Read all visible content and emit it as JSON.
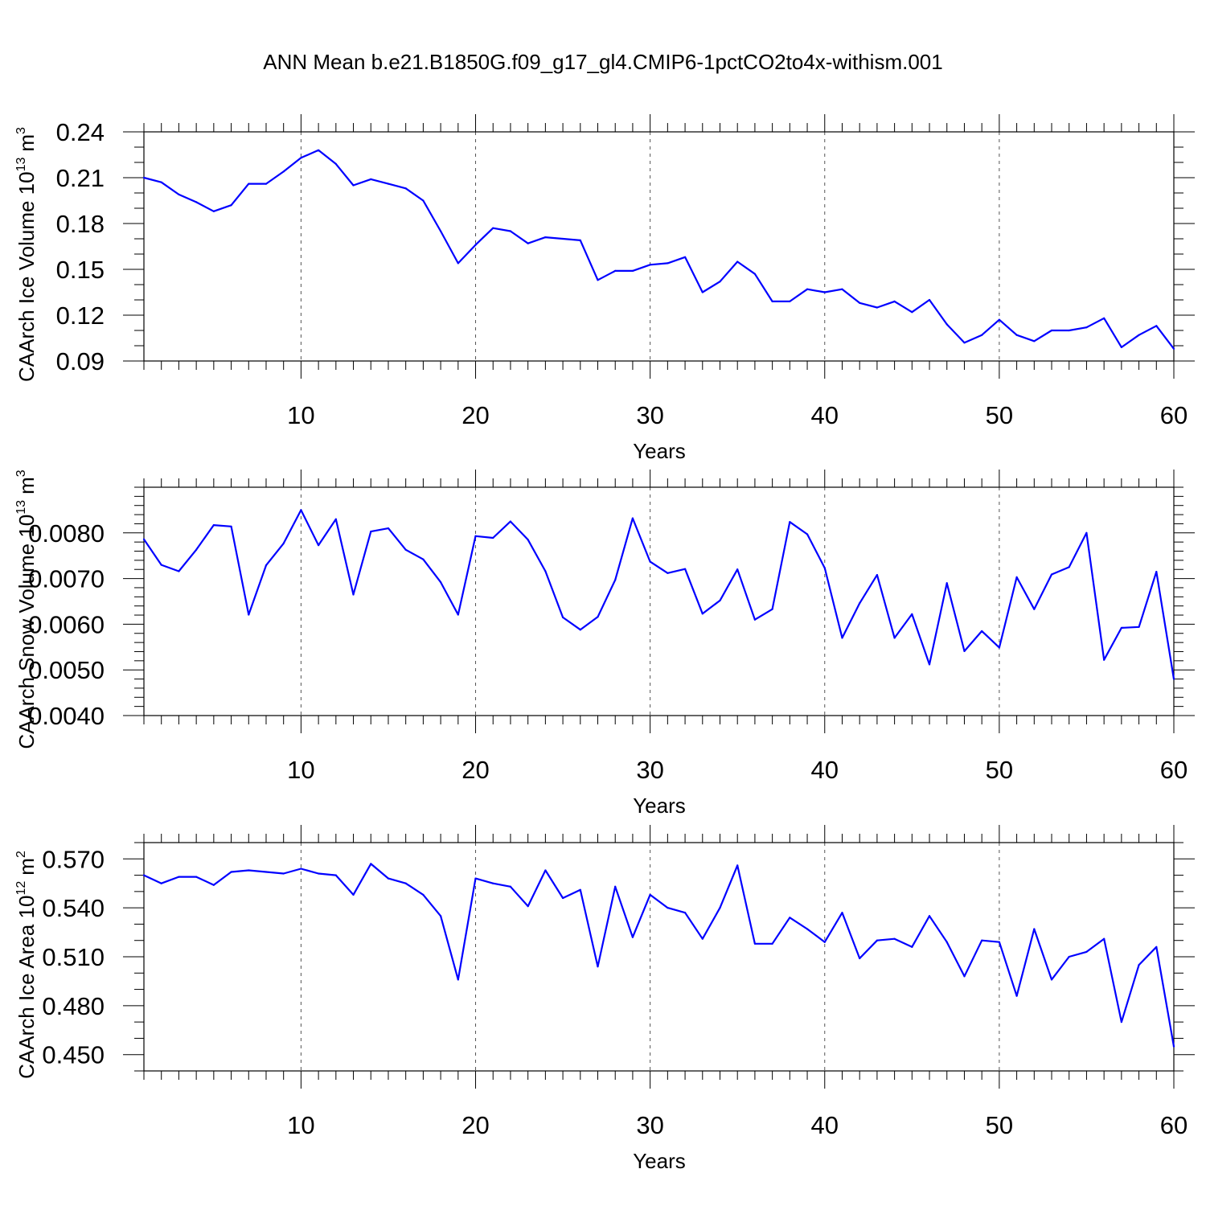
{
  "page": {
    "title": "ANN Mean b.e21.B1850G.f09_g17_gl4.CMIP6-1pctCO2to4x-withism.001"
  },
  "style": {
    "line_color": "#0000ff",
    "axis_color": "#000000",
    "grid_color": "#555555"
  },
  "chart_data": [
    {
      "type": "line",
      "title": "",
      "xlabel": "Years",
      "ylabel": "CAArch Ice Volume 10",
      "ylabel_sup": "13",
      "ylabel_unit": "m",
      "ylabel_unit_sup": "3",
      "xlim": [
        1,
        60
      ],
      "ylim": [
        0.09,
        0.24
      ],
      "yticks": [
        0.09,
        0.12,
        0.15,
        0.18,
        0.21,
        0.24
      ],
      "ytick_labels": [
        "0.09",
        "0.12",
        "0.15",
        "0.18",
        "0.21",
        "0.24"
      ],
      "ytick_minor": 0.01,
      "xticks": [
        10,
        20,
        30,
        40,
        50,
        60
      ],
      "xtick_labels": [
        "10",
        "20",
        "30",
        "40",
        "50",
        "60"
      ],
      "grid": "vertical dashed at major x ticks",
      "x": [
        1,
        2,
        3,
        4,
        5,
        6,
        7,
        8,
        9,
        10,
        11,
        12,
        13,
        14,
        15,
        16,
        17,
        18,
        19,
        20,
        21,
        22,
        23,
        24,
        25,
        26,
        27,
        28,
        29,
        30,
        31,
        32,
        33,
        34,
        35,
        36,
        37,
        38,
        39,
        40,
        41,
        42,
        43,
        44,
        45,
        46,
        47,
        48,
        49,
        50,
        51,
        52,
        53,
        54,
        55,
        56,
        57,
        58,
        59,
        60
      ],
      "series": [
        {
          "values": [
            0.21,
            0.207,
            0.199,
            0.194,
            0.188,
            0.192,
            0.206,
            0.206,
            0.214,
            0.223,
            0.228,
            0.219,
            0.205,
            0.209,
            0.206,
            0.203,
            0.195,
            0.175,
            0.154,
            0.166,
            0.177,
            0.175,
            0.167,
            0.171,
            0.17,
            0.169,
            0.143,
            0.149,
            0.149,
            0.153,
            0.154,
            0.158,
            0.135,
            0.142,
            0.155,
            0.147,
            0.129,
            0.129,
            0.137,
            0.135,
            0.137,
            0.128,
            0.125,
            0.129,
            0.122,
            0.13,
            0.114,
            0.102,
            0.107,
            0.117,
            0.107,
            0.103,
            0.11,
            0.11,
            0.112,
            0.118,
            0.099,
            0.107,
            0.113,
            0.098
          ]
        }
      ]
    },
    {
      "type": "line",
      "title": "",
      "xlabel": "Years",
      "ylabel": "CAArch Snow Volume 10",
      "ylabel_sup": "13",
      "ylabel_unit": "m",
      "ylabel_unit_sup": "3",
      "xlim": [
        1,
        60
      ],
      "ylim": [
        0.004,
        0.009
      ],
      "yticks": [
        0.004,
        0.005,
        0.006,
        0.007,
        0.008
      ],
      "ytick_labels": [
        "0.0040",
        "0.0050",
        "0.0060",
        "0.0070",
        "0.0080"
      ],
      "ytick_minor": 0.0002,
      "xticks": [
        10,
        20,
        30,
        40,
        50,
        60
      ],
      "xtick_labels": [
        "10",
        "20",
        "30",
        "40",
        "50",
        "60"
      ],
      "grid": "vertical dashed at major x ticks",
      "x": [
        1,
        2,
        3,
        4,
        5,
        6,
        7,
        8,
        9,
        10,
        11,
        12,
        13,
        14,
        15,
        16,
        17,
        18,
        19,
        20,
        21,
        22,
        23,
        24,
        25,
        26,
        27,
        28,
        29,
        30,
        31,
        32,
        33,
        34,
        35,
        36,
        37,
        38,
        39,
        40,
        41,
        42,
        43,
        44,
        45,
        46,
        47,
        48,
        49,
        50,
        51,
        52,
        53,
        54,
        55,
        56,
        57,
        58,
        59,
        60
      ],
      "series": [
        {
          "values": [
            0.00786,
            0.0073,
            0.00716,
            0.00763,
            0.00817,
            0.00814,
            0.00621,
            0.00729,
            0.00777,
            0.0085,
            0.00773,
            0.0083,
            0.00665,
            0.00803,
            0.0081,
            0.00763,
            0.00742,
            0.00692,
            0.00621,
            0.00793,
            0.00789,
            0.00825,
            0.00785,
            0.00716,
            0.00615,
            0.00588,
            0.00616,
            0.00697,
            0.00832,
            0.00737,
            0.00712,
            0.00721,
            0.00623,
            0.00652,
            0.0072,
            0.0061,
            0.00633,
            0.00824,
            0.00797,
            0.00723,
            0.0057,
            0.00646,
            0.00708,
            0.0057,
            0.00622,
            0.00512,
            0.0069,
            0.00541,
            0.00585,
            0.00549,
            0.00703,
            0.00633,
            0.00709,
            0.00725,
            0.008,
            0.00522,
            0.00592,
            0.00594,
            0.00715,
            0.0048
          ]
        }
      ]
    },
    {
      "type": "line",
      "title": "",
      "xlabel": "Years",
      "ylabel": "CAArch Ice Area 10",
      "ylabel_sup": "12",
      "ylabel_unit": "m",
      "ylabel_unit_sup": "2",
      "xlim": [
        1,
        60
      ],
      "ylim": [
        0.44,
        0.58
      ],
      "yticks": [
        0.45,
        0.48,
        0.51,
        0.54,
        0.57
      ],
      "ytick_labels": [
        "0.450",
        "0.480",
        "0.510",
        "0.540",
        "0.570"
      ],
      "ytick_minor": 0.01,
      "xticks": [
        10,
        20,
        30,
        40,
        50,
        60
      ],
      "xtick_labels": [
        "10",
        "20",
        "30",
        "40",
        "50",
        "60"
      ],
      "grid": "vertical dashed at major x ticks",
      "x": [
        1,
        2,
        3,
        4,
        5,
        6,
        7,
        8,
        9,
        10,
        11,
        12,
        13,
        14,
        15,
        16,
        17,
        18,
        19,
        20,
        21,
        22,
        23,
        24,
        25,
        26,
        27,
        28,
        29,
        30,
        31,
        32,
        33,
        34,
        35,
        36,
        37,
        38,
        39,
        40,
        41,
        42,
        43,
        44,
        45,
        46,
        47,
        48,
        49,
        50,
        51,
        52,
        53,
        54,
        55,
        56,
        57,
        58,
        59,
        60
      ],
      "series": [
        {
          "values": [
            0.56,
            0.555,
            0.559,
            0.559,
            0.554,
            0.562,
            0.563,
            0.562,
            0.561,
            0.564,
            0.561,
            0.56,
            0.548,
            0.567,
            0.558,
            0.555,
            0.548,
            0.535,
            0.496,
            0.558,
            0.555,
            0.553,
            0.541,
            0.563,
            0.546,
            0.551,
            0.504,
            0.553,
            0.522,
            0.548,
            0.54,
            0.537,
            0.521,
            0.54,
            0.566,
            0.518,
            0.518,
            0.534,
            0.527,
            0.519,
            0.537,
            0.509,
            0.52,
            0.521,
            0.516,
            0.535,
            0.519,
            0.498,
            0.52,
            0.519,
            0.486,
            0.527,
            0.496,
            0.51,
            0.513,
            0.521,
            0.47,
            0.505,
            0.516,
            0.455
          ]
        }
      ]
    }
  ]
}
